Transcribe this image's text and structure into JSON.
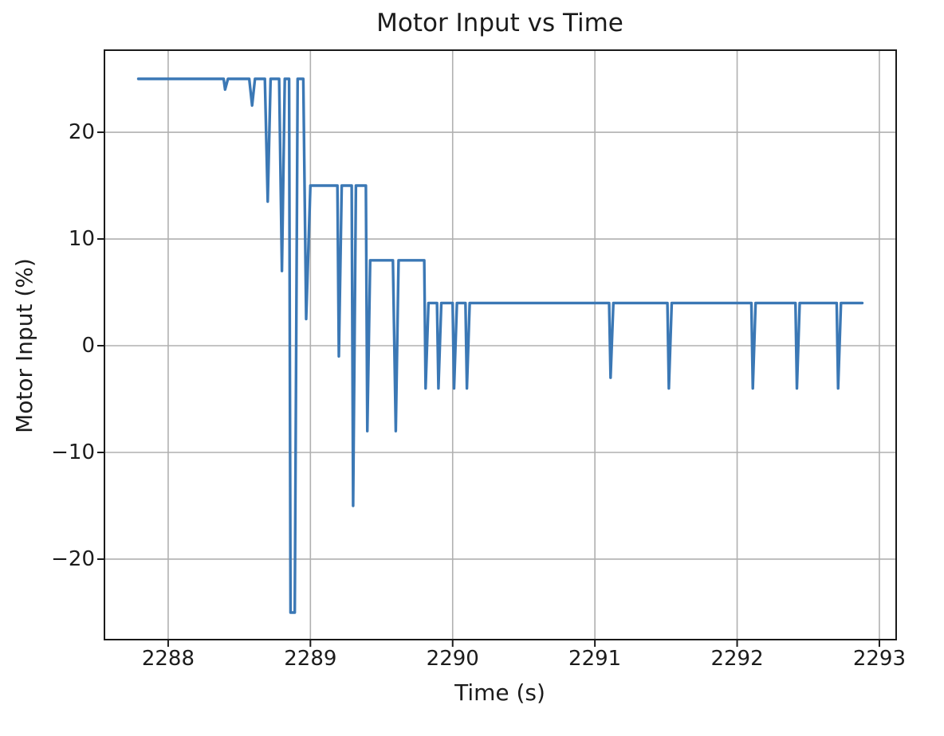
{
  "figure": {
    "background": "#ffffff",
    "text_color": "#1c1c1c"
  },
  "chart_data": {
    "type": "line",
    "title": "Motor Input vs Time",
    "xlabel": "Time (s)",
    "ylabel": "Motor Input (%)",
    "xlim": [
      2287.552,
      2293.118
    ],
    "ylim": [
      -27.54,
      27.69
    ],
    "xticks": [
      2288,
      2289,
      2290,
      2291,
      2292,
      2293
    ],
    "yticks": [
      -20,
      -10,
      0,
      10,
      20
    ],
    "grid": true,
    "legend": "none",
    "line_color": "#3b78b5",
    "grid_color": "#b0b0b0",
    "spine_color": "#1a1a1a",
    "series": [
      {
        "name": "motor_input",
        "points": [
          [
            2287.79,
            25
          ],
          [
            2288.39,
            25
          ],
          [
            2288.4,
            24
          ],
          [
            2288.42,
            25
          ],
          [
            2288.57,
            25
          ],
          [
            2288.59,
            22.5
          ],
          [
            2288.61,
            25
          ],
          [
            2288.68,
            25
          ],
          [
            2288.7,
            13.5
          ],
          [
            2288.72,
            25
          ],
          [
            2288.78,
            25
          ],
          [
            2288.8,
            7
          ],
          [
            2288.82,
            25
          ],
          [
            2288.85,
            25
          ],
          [
            2288.86,
            -25
          ],
          [
            2288.89,
            -25
          ],
          [
            2288.91,
            25
          ],
          [
            2288.95,
            25
          ],
          [
            2288.97,
            2.5
          ],
          [
            2289.0,
            15
          ],
          [
            2289.19,
            15
          ],
          [
            2289.2,
            -1
          ],
          [
            2289.22,
            15
          ],
          [
            2289.29,
            15
          ],
          [
            2289.3,
            -15
          ],
          [
            2289.32,
            15
          ],
          [
            2289.39,
            15
          ],
          [
            2289.4,
            -8
          ],
          [
            2289.42,
            8
          ],
          [
            2289.58,
            8
          ],
          [
            2289.6,
            -8
          ],
          [
            2289.62,
            8
          ],
          [
            2289.8,
            8
          ],
          [
            2289.81,
            -4
          ],
          [
            2289.83,
            4
          ],
          [
            2289.89,
            4
          ],
          [
            2289.9,
            -4
          ],
          [
            2289.92,
            4
          ],
          [
            2290.0,
            4
          ],
          [
            2290.01,
            -4
          ],
          [
            2290.03,
            4
          ],
          [
            2290.09,
            4
          ],
          [
            2290.1,
            -4
          ],
          [
            2290.12,
            4
          ],
          [
            2291.1,
            4
          ],
          [
            2291.11,
            -3
          ],
          [
            2291.13,
            4
          ],
          [
            2291.51,
            4
          ],
          [
            2291.52,
            -4
          ],
          [
            2291.54,
            4
          ],
          [
            2292.1,
            4
          ],
          [
            2292.11,
            -4
          ],
          [
            2292.13,
            4
          ],
          [
            2292.41,
            4
          ],
          [
            2292.42,
            -4
          ],
          [
            2292.44,
            4
          ],
          [
            2292.7,
            4
          ],
          [
            2292.71,
            -4
          ],
          [
            2292.73,
            4
          ],
          [
            2292.88,
            4
          ]
        ]
      }
    ]
  }
}
